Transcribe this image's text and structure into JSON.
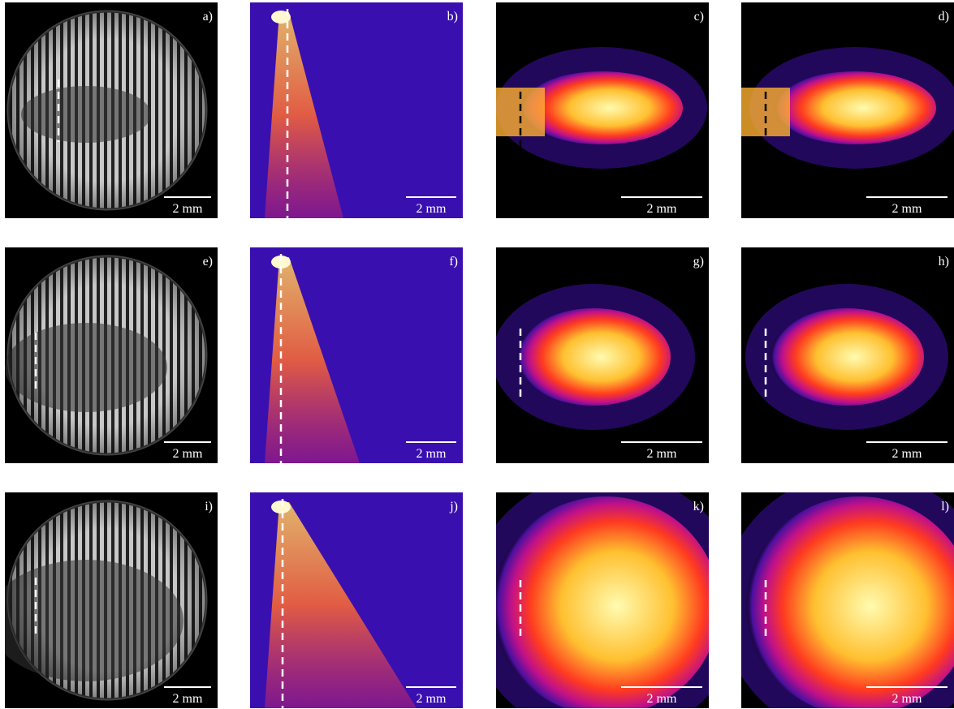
{
  "panels": [
    {
      "label": "a)",
      "scale_bar": "2 mm"
    },
    {
      "label": "b)",
      "scale_bar": "2 mm"
    },
    {
      "label": "c)",
      "scale_bar": "2 mm"
    },
    {
      "label": "d)",
      "scale_bar": "2 mm"
    },
    {
      "label": "e)",
      "scale_bar": "2 mm"
    },
    {
      "label": "f)",
      "scale_bar": "2 mm"
    },
    {
      "label": "g)",
      "scale_bar": "2 mm"
    },
    {
      "label": "h)",
      "scale_bar": "2 mm"
    },
    {
      "label": "i)",
      "scale_bar": "2 mm"
    },
    {
      "label": "j)",
      "scale_bar": "2 mm"
    },
    {
      "label": "k)",
      "scale_bar": "2 mm"
    },
    {
      "label": "l)",
      "scale_bar": "2 mm"
    }
  ]
}
